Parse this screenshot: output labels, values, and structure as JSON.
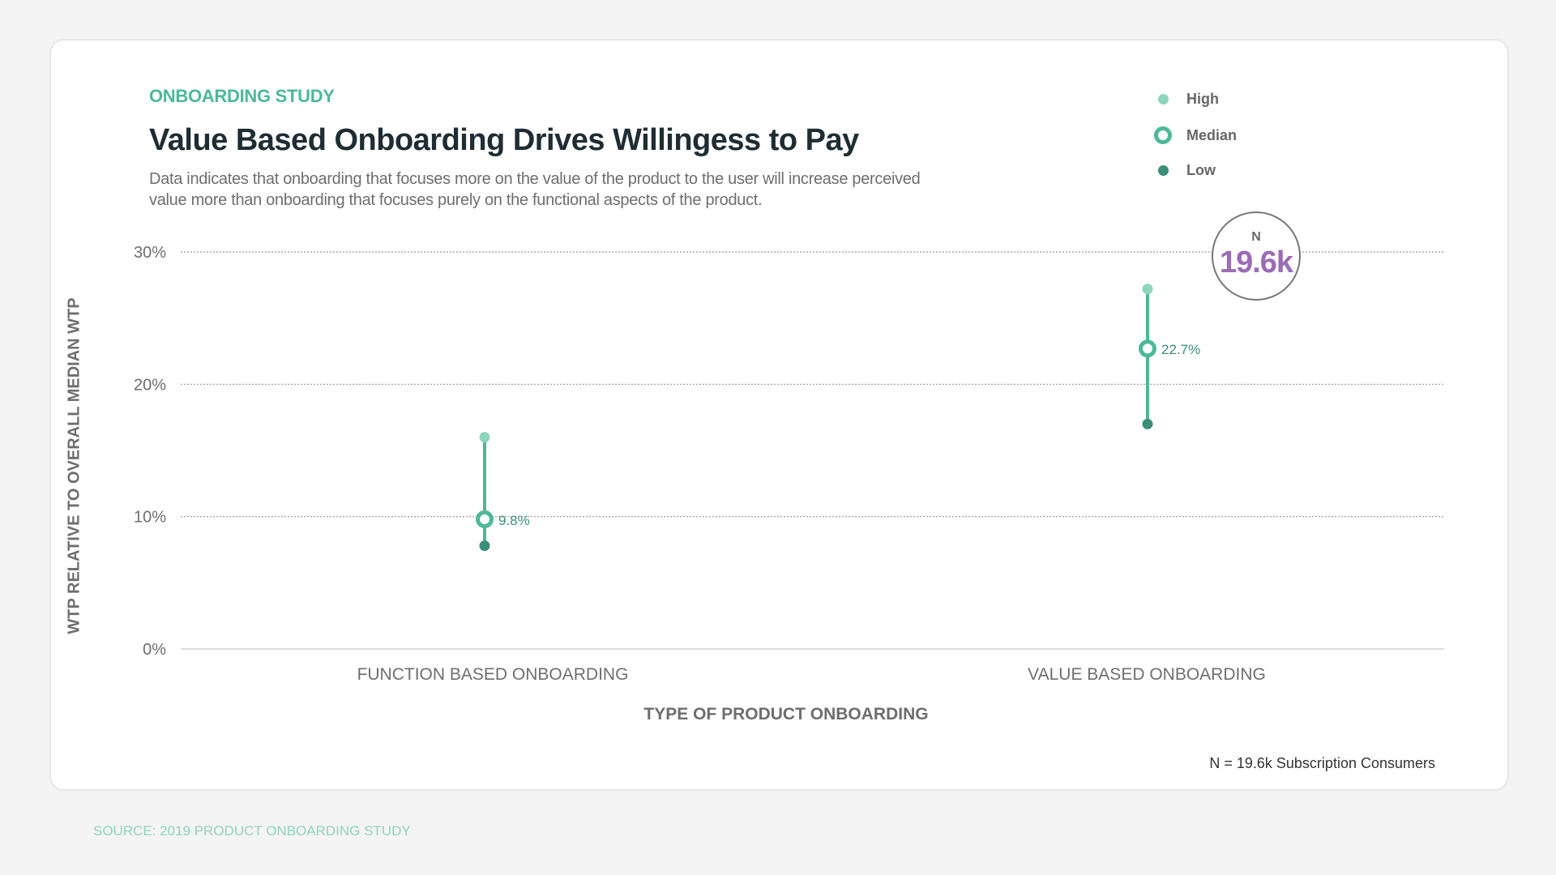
{
  "eyebrow": "ONBOARDING STUDY",
  "title": "Value Based Onboarding Drives Willingess to Pay",
  "description": "Data indicates that onboarding that focuses more on the value of the product to the user will increase perceived value more than onboarding that focuses purely on the functional aspects of the product.",
  "legend": [
    {
      "label": "High",
      "color": "#8bd6bd"
    },
    {
      "label": "Median",
      "color": "#4db89a"
    },
    {
      "label": "Low",
      "color": "#3a8f78"
    }
  ],
  "badge": {
    "label": "N",
    "value": "19.6k",
    "color": "#9b6bb5"
  },
  "footnote": "N = 19.6k Subscription Consumers",
  "source": "SOURCE: 2019 PRODUCT ONBOARDING STUDY",
  "chart_data": {
    "type": "range-dot",
    "title": "Value Based Onboarding Drives Willingess to Pay",
    "xlabel": "TYPE OF PRODUCT ONBOARDING",
    "ylabel": "WTP RELATIVE TO OVERALL MEDIAN WTP",
    "ylim": [
      0,
      30
    ],
    "yticks": [
      "0%",
      "10%",
      "20%",
      "30%"
    ],
    "ytick_values": [
      0,
      10,
      20,
      30
    ],
    "grid": true,
    "legend_position": "top-right",
    "categories": [
      "FUNCTION BASED ONBOARDING",
      "VALUE BASED ONBOARDING"
    ],
    "series": [
      {
        "name": "High",
        "values": [
          16.0,
          27.2
        ]
      },
      {
        "name": "Median",
        "values": [
          9.8,
          22.7
        ]
      },
      {
        "name": "Low",
        "values": [
          7.8,
          17.0
        ]
      }
    ],
    "median_labels": [
      "9.8%",
      "22.7%"
    ]
  }
}
